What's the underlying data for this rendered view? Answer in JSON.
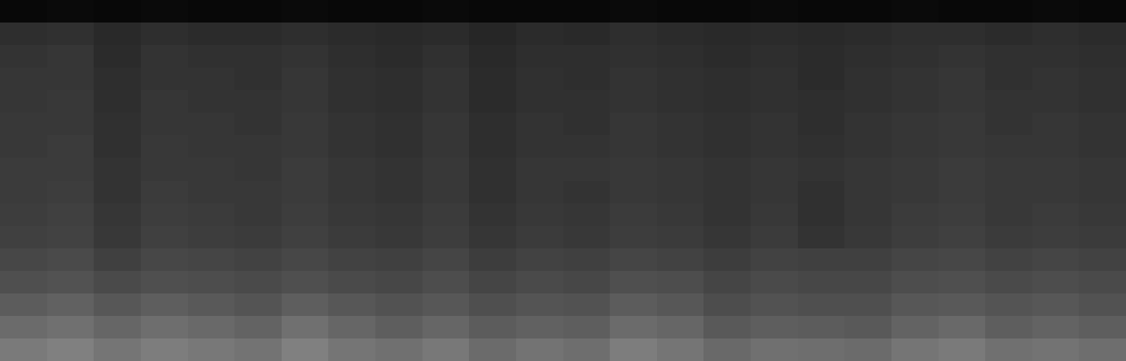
{
  "chart_data": {
    "type": "heatmap",
    "tick_labels": false,
    "zlim": [
      0,
      1
    ],
    "xlim": [
      -0.5,
      23.5
    ],
    "ylim": [
      -0.5,
      15.5
    ],
    "z": [
      [
        0.48,
        0.5,
        0.46,
        0.49,
        0.47,
        0.45,
        0.5,
        0.46,
        0.44,
        0.47,
        0.42,
        0.45,
        0.43,
        0.49,
        0.46,
        0.41,
        0.44,
        0.43,
        0.42,
        0.46,
        0.48,
        0.44,
        0.45,
        0.43
      ],
      [
        0.42,
        0.44,
        0.4,
        0.43,
        0.41,
        0.39,
        0.44,
        0.4,
        0.37,
        0.4,
        0.36,
        0.38,
        0.37,
        0.42,
        0.4,
        0.35,
        0.37,
        0.36,
        0.35,
        0.39,
        0.41,
        0.37,
        0.39,
        0.37
      ],
      [
        0.36,
        0.38,
        0.34,
        0.37,
        0.35,
        0.33,
        0.37,
        0.34,
        0.32,
        0.34,
        0.31,
        0.33,
        0.32,
        0.36,
        0.34,
        0.3,
        0.32,
        0.31,
        0.31,
        0.34,
        0.35,
        0.33,
        0.34,
        0.32
      ],
      [
        0.31,
        0.32,
        0.29,
        0.31,
        0.3,
        0.29,
        0.31,
        0.29,
        0.28,
        0.3,
        0.27,
        0.29,
        0.28,
        0.31,
        0.3,
        0.27,
        0.29,
        0.28,
        0.28,
        0.3,
        0.31,
        0.29,
        0.3,
        0.29
      ],
      [
        0.28,
        0.29,
        0.25,
        0.28,
        0.27,
        0.26,
        0.28,
        0.26,
        0.25,
        0.27,
        0.24,
        0.26,
        0.25,
        0.27,
        0.26,
        0.24,
        0.26,
        0.25,
        0.25,
        0.27,
        0.28,
        0.26,
        0.27,
        0.26
      ],
      [
        0.25,
        0.26,
        0.22,
        0.25,
        0.24,
        0.23,
        0.25,
        0.23,
        0.22,
        0.24,
        0.21,
        0.23,
        0.22,
        0.24,
        0.23,
        0.21,
        0.23,
        0.2,
        0.22,
        0.24,
        0.25,
        0.23,
        0.24,
        0.23
      ],
      [
        0.24,
        0.25,
        0.21,
        0.24,
        0.23,
        0.22,
        0.24,
        0.22,
        0.21,
        0.23,
        0.2,
        0.22,
        0.21,
        0.23,
        0.22,
        0.2,
        0.22,
        0.19,
        0.21,
        0.23,
        0.24,
        0.22,
        0.23,
        0.22
      ],
      [
        0.23,
        0.24,
        0.2,
        0.23,
        0.22,
        0.22,
        0.23,
        0.21,
        0.2,
        0.22,
        0.19,
        0.21,
        0.2,
        0.22,
        0.21,
        0.2,
        0.21,
        0.19,
        0.21,
        0.22,
        0.23,
        0.22,
        0.22,
        0.21
      ],
      [
        0.23,
        0.23,
        0.2,
        0.22,
        0.22,
        0.21,
        0.23,
        0.21,
        0.2,
        0.22,
        0.19,
        0.21,
        0.21,
        0.22,
        0.21,
        0.2,
        0.21,
        0.2,
        0.21,
        0.22,
        0.23,
        0.22,
        0.22,
        0.21
      ],
      [
        0.22,
        0.23,
        0.19,
        0.22,
        0.21,
        0.21,
        0.22,
        0.2,
        0.19,
        0.21,
        0.18,
        0.2,
        0.2,
        0.21,
        0.2,
        0.19,
        0.2,
        0.19,
        0.2,
        0.21,
        0.22,
        0.21,
        0.21,
        0.2
      ],
      [
        0.22,
        0.22,
        0.19,
        0.21,
        0.21,
        0.2,
        0.22,
        0.2,
        0.19,
        0.21,
        0.18,
        0.2,
        0.19,
        0.21,
        0.2,
        0.19,
        0.2,
        0.18,
        0.2,
        0.21,
        0.22,
        0.2,
        0.21,
        0.2
      ],
      [
        0.21,
        0.22,
        0.18,
        0.21,
        0.2,
        0.2,
        0.21,
        0.19,
        0.18,
        0.2,
        0.17,
        0.19,
        0.19,
        0.2,
        0.19,
        0.18,
        0.19,
        0.18,
        0.19,
        0.2,
        0.21,
        0.2,
        0.2,
        0.19
      ],
      [
        0.21,
        0.21,
        0.18,
        0.2,
        0.2,
        0.19,
        0.21,
        0.19,
        0.18,
        0.2,
        0.17,
        0.19,
        0.18,
        0.2,
        0.19,
        0.18,
        0.19,
        0.17,
        0.19,
        0.2,
        0.21,
        0.19,
        0.2,
        0.19
      ],
      [
        0.2,
        0.21,
        0.17,
        0.2,
        0.19,
        0.19,
        0.2,
        0.18,
        0.17,
        0.19,
        0.16,
        0.18,
        0.18,
        0.19,
        0.18,
        0.17,
        0.18,
        0.17,
        0.18,
        0.19,
        0.2,
        0.19,
        0.19,
        0.18
      ],
      [
        0.18,
        0.19,
        0.16,
        0.18,
        0.17,
        0.17,
        0.18,
        0.17,
        0.16,
        0.17,
        0.15,
        0.17,
        0.16,
        0.18,
        0.17,
        0.16,
        0.17,
        0.16,
        0.17,
        0.18,
        0.18,
        0.17,
        0.18,
        0.17
      ],
      [
        0.03,
        0.04,
        0.03,
        0.04,
        0.03,
        0.03,
        0.04,
        0.03,
        0.03,
        0.04,
        0.03,
        0.03,
        0.03,
        0.04,
        0.03,
        0.03,
        0.04,
        0.03,
        0.03,
        0.04,
        0.03,
        0.03,
        0.04,
        0.03
      ]
    ]
  }
}
